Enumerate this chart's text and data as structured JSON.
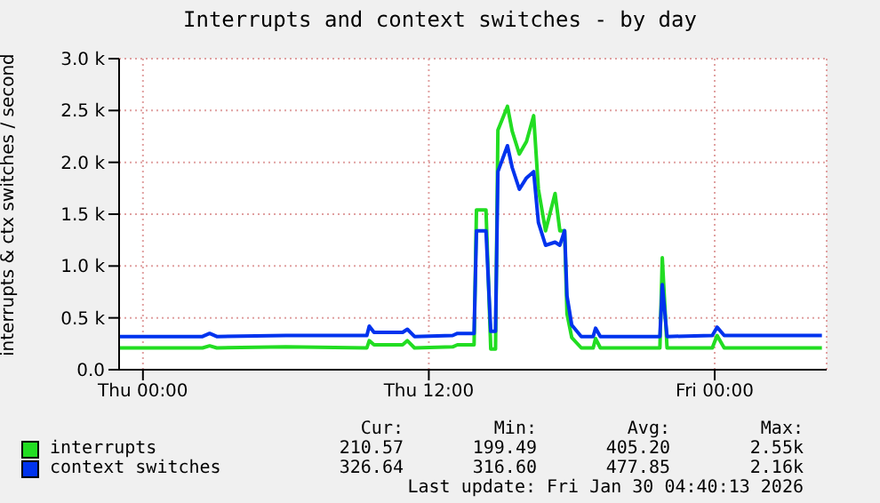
{
  "chart_data": {
    "type": "line",
    "title": "Interrupts and context switches - by day",
    "ylabel": "interrupts & ctx switches / second",
    "x": [
      "2026-01-28T23:00",
      "2026-01-29T02:30",
      "2026-01-29T02:48",
      "2026-01-29T03:06",
      "2026-01-29T06:00",
      "2026-01-29T09:24",
      "2026-01-29T09:30",
      "2026-01-29T09:42",
      "2026-01-29T10:54",
      "2026-01-29T11:06",
      "2026-01-29T11:24",
      "2026-01-29T13:00",
      "2026-01-29T13:12",
      "2026-01-29T13:54",
      "2026-01-29T14:00",
      "2026-01-29T14:24",
      "2026-01-29T14:36",
      "2026-01-29T14:48",
      "2026-01-29T14:54",
      "2026-01-29T15:18",
      "2026-01-29T15:30",
      "2026-01-29T15:48",
      "2026-01-29T16:06",
      "2026-01-29T16:24",
      "2026-01-29T16:36",
      "2026-01-29T16:54",
      "2026-01-29T17:18",
      "2026-01-29T17:30",
      "2026-01-29T17:42",
      "2026-01-29T17:48",
      "2026-01-29T18:00",
      "2026-01-29T18:24",
      "2026-01-29T18:54",
      "2026-01-29T19:00",
      "2026-01-29T19:12",
      "2026-01-29T21:42",
      "2026-01-29T21:48",
      "2026-01-29T22:00",
      "2026-01-29T23:54",
      "2026-01-30T00:06",
      "2026-01-30T00:24",
      "2026-01-30T04:30"
    ],
    "series": [
      {
        "name": "interrupts",
        "color": "#22dd22",
        "values": [
          210,
          210,
          230,
          210,
          220,
          210,
          280,
          240,
          240,
          280,
          210,
          220,
          240,
          240,
          1540,
          1540,
          200,
          200,
          2310,
          2540,
          2300,
          2080,
          2200,
          2450,
          1740,
          1340,
          1700,
          1340,
          1340,
          540,
          310,
          210,
          210,
          300,
          210,
          210,
          1080,
          210,
          210,
          330,
          210,
          210
        ]
      },
      {
        "name": "context switches",
        "color": "#0033ee",
        "values": [
          320,
          320,
          350,
          320,
          330,
          330,
          420,
          360,
          360,
          390,
          320,
          330,
          350,
          350,
          1340,
          1340,
          370,
          370,
          1910,
          2160,
          1950,
          1740,
          1850,
          1910,
          1420,
          1200,
          1230,
          1200,
          1340,
          710,
          430,
          320,
          320,
          400,
          320,
          320,
          820,
          320,
          330,
          410,
          330,
          330
        ]
      }
    ],
    "xlim": [
      "2026-01-28T23:00",
      "2026-01-30T04:42"
    ],
    "xticks": [
      {
        "value": "2026-01-29T00:00",
        "label": "Thu 00:00"
      },
      {
        "value": "2026-01-29T12:00",
        "label": "Thu 12:00"
      },
      {
        "value": "2026-01-30T00:00",
        "label": "Fri 00:00"
      }
    ],
    "ylim": [
      0,
      3000
    ],
    "yticks": [
      {
        "value": 0,
        "label": "0.0"
      },
      {
        "value": 500,
        "label": "0.5 k"
      },
      {
        "value": 1000,
        "label": "1.0 k"
      },
      {
        "value": 1500,
        "label": "1.5 k"
      },
      {
        "value": 2000,
        "label": "2.0 k"
      },
      {
        "value": 2500,
        "label": "2.5 k"
      },
      {
        "value": 3000,
        "label": "3.0 k"
      }
    ],
    "grid": true,
    "legend": "bottom",
    "marker": "none",
    "line_style": "solid",
    "annotations": [
      "Cur:",
      "Min:",
      "Avg:",
      "Max:",
      "210.57",
      "199.49",
      "405.20",
      "2.55k",
      "326.64",
      "316.60",
      "477.85",
      "2.16k",
      "Last update: Fri Jan 30 04:40:13 2026"
    ]
  }
}
